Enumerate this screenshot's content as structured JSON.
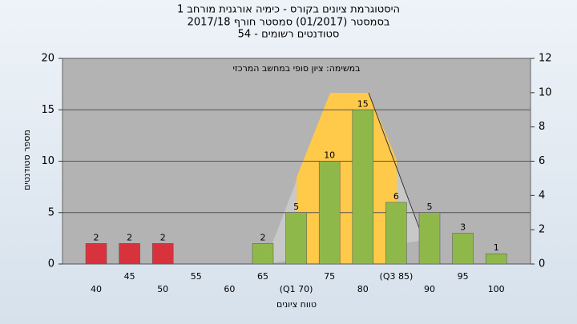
{
  "chart_data": {
    "type": "bar",
    "title": "היסטוגרמת ציונים בקורס - כימיה אורגנית מורחב 1",
    "subtitle": "בסמסטר  (01/2017)  סמסטר חורף 2017/18",
    "subtitle2": "סטודנטים רשומים - 54",
    "annotation": "במשימה: ציון סופי במחשב המרכזי",
    "x_label": "טווח ציונים",
    "y_label": "מספר סטודנטים",
    "categories": [
      "40",
      "45",
      "50",
      "55",
      "60",
      "65",
      "(Q1 70)",
      "75",
      "80",
      "(Q3 85)",
      "90",
      "95",
      "100"
    ],
    "values": [
      2,
      2,
      2,
      null,
      null,
      2,
      5,
      10,
      15,
      6,
      5,
      3,
      1
    ],
    "colors": [
      "#d8333c",
      "#d8333c",
      "#d8333c",
      "#8fb84a",
      "#8fb84a",
      "#8fb84a",
      "#8fb84a",
      "#8fb84a",
      "#8fb84a",
      "#8fb84a",
      "#8fb84a",
      "#8fb84a",
      "#8fb84a"
    ],
    "ylim": [
      0,
      20
    ],
    "yticks": [
      0,
      5,
      10,
      15,
      20
    ],
    "y2lim": [
      0,
      12
    ],
    "y2ticks": [
      0,
      2,
      4,
      6,
      8,
      10,
      12
    ],
    "grid": true
  }
}
